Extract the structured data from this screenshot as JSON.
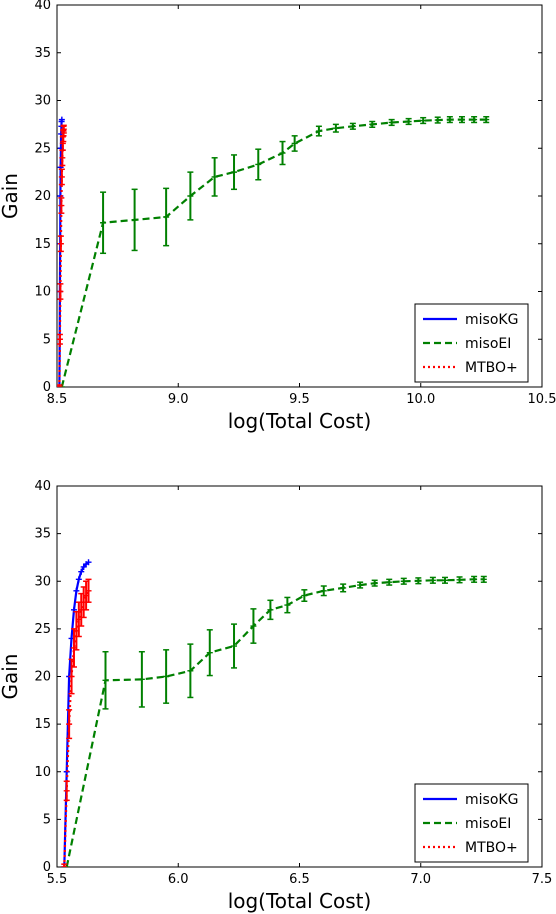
{
  "chart_data": [
    {
      "type": "line",
      "xlabel": "log(Total Cost)",
      "ylabel": "Gain",
      "xlim": [
        8.5,
        10.5
      ],
      "ylim": [
        0,
        40
      ],
      "xticks": [
        "8.5",
        "9.0",
        "9.5",
        "10.0",
        "10.5"
      ],
      "yticks": [
        "0",
        "5",
        "10",
        "15",
        "20",
        "25",
        "30",
        "35",
        "40"
      ],
      "legend_position": "bottom-right",
      "series": [
        {
          "name": "misoKG",
          "color": "#0000ff",
          "style": "solid",
          "x": [
            8.51,
            8.511,
            8.512,
            8.513,
            8.514,
            8.515,
            8.516,
            8.517,
            8.518,
            8.519,
            8.52
          ],
          "y": [
            0,
            5,
            10,
            15,
            20,
            23,
            25,
            26.5,
            27.3,
            27.8,
            28.0
          ],
          "err": []
        },
        {
          "name": "misoEI",
          "color": "#008000",
          "style": "dashed",
          "x": [
            8.52,
            8.69,
            8.82,
            8.95,
            9.05,
            9.15,
            9.23,
            9.33,
            9.43,
            9.48,
            9.58,
            9.65,
            9.72,
            9.8,
            9.88,
            9.95,
            10.01,
            10.07,
            10.12,
            10.17,
            10.22,
            10.27
          ],
          "y": [
            0,
            17.2,
            17.5,
            17.8,
            20.0,
            22.0,
            22.5,
            23.3,
            24.5,
            25.5,
            26.8,
            27.1,
            27.3,
            27.5,
            27.7,
            27.8,
            27.9,
            27.95,
            28.0,
            28.0,
            28.0,
            28.0
          ],
          "err": [
            0,
            3.2,
            3.2,
            3.0,
            2.5,
            2.0,
            1.8,
            1.6,
            1.2,
            0.8,
            0.5,
            0.4,
            0.3,
            0.3,
            0.3,
            0.3,
            0.3,
            0.3,
            0.3,
            0.3,
            0.3,
            0.3
          ]
        },
        {
          "name": "MTBO+",
          "color": "#ff0000",
          "style": "dotted",
          "x": [
            8.51,
            8.512,
            8.514,
            8.516,
            8.518,
            8.52,
            8.522,
            8.524,
            8.526,
            8.527,
            8.528
          ],
          "y": [
            0,
            5,
            10,
            15,
            19,
            22,
            24,
            25.5,
            26.3,
            26.8,
            27.0
          ],
          "err": [
            0.2,
            0.5,
            0.8,
            0.8,
            0.8,
            0.8,
            0.8,
            0.7,
            0.6,
            0.5,
            0.4
          ]
        }
      ]
    },
    {
      "type": "line",
      "xlabel": "log(Total Cost)",
      "ylabel": "Gain",
      "xlim": [
        5.5,
        7.5
      ],
      "ylim": [
        0,
        40
      ],
      "xticks": [
        "5.5",
        "6.0",
        "6.5",
        "7.0",
        "7.5"
      ],
      "yticks": [
        "0",
        "5",
        "10",
        "15",
        "20",
        "25",
        "30",
        "35",
        "40"
      ],
      "legend_position": "bottom-right",
      "series": [
        {
          "name": "misoKG",
          "color": "#0000ff",
          "style": "solid",
          "x": [
            5.53,
            5.54,
            5.55,
            5.56,
            5.57,
            5.58,
            5.59,
            5.6,
            5.61,
            5.62,
            5.63
          ],
          "y": [
            0,
            10,
            20,
            24,
            27,
            29,
            30.2,
            31.0,
            31.5,
            31.8,
            32.0
          ],
          "err": []
        },
        {
          "name": "misoEI",
          "color": "#008000",
          "style": "dashed",
          "x": [
            5.54,
            5.7,
            5.85,
            5.95,
            6.05,
            6.13,
            6.23,
            6.31,
            6.38,
            6.45,
            6.52,
            6.6,
            6.68,
            6.75,
            6.81,
            6.87,
            6.93,
            6.99,
            7.05,
            7.1,
            7.16,
            7.22,
            7.26
          ],
          "y": [
            0,
            19.6,
            19.7,
            20.0,
            20.6,
            22.5,
            23.2,
            25.3,
            27.0,
            27.5,
            28.5,
            29.0,
            29.3,
            29.6,
            29.8,
            29.9,
            30.0,
            30.05,
            30.1,
            30.1,
            30.15,
            30.2,
            30.2
          ],
          "err": [
            0,
            3.0,
            2.9,
            2.8,
            2.8,
            2.4,
            2.3,
            1.8,
            1.0,
            0.8,
            0.6,
            0.5,
            0.4,
            0.3,
            0.3,
            0.3,
            0.3,
            0.3,
            0.3,
            0.3,
            0.3,
            0.3,
            0.3
          ]
        },
        {
          "name": "MTBO+",
          "color": "#ff0000",
          "style": "dotted",
          "x": [
            5.53,
            5.54,
            5.55,
            5.56,
            5.57,
            5.58,
            5.59,
            5.6,
            5.61,
            5.62,
            5.63
          ],
          "y": [
            0,
            8,
            15,
            20,
            23,
            24.8,
            26.0,
            27.0,
            27.8,
            28.5,
            29.0
          ],
          "err": [
            0.3,
            1.0,
            1.5,
            1.8,
            2.0,
            2.0,
            1.8,
            1.7,
            1.6,
            1.5,
            1.2
          ]
        }
      ]
    }
  ]
}
